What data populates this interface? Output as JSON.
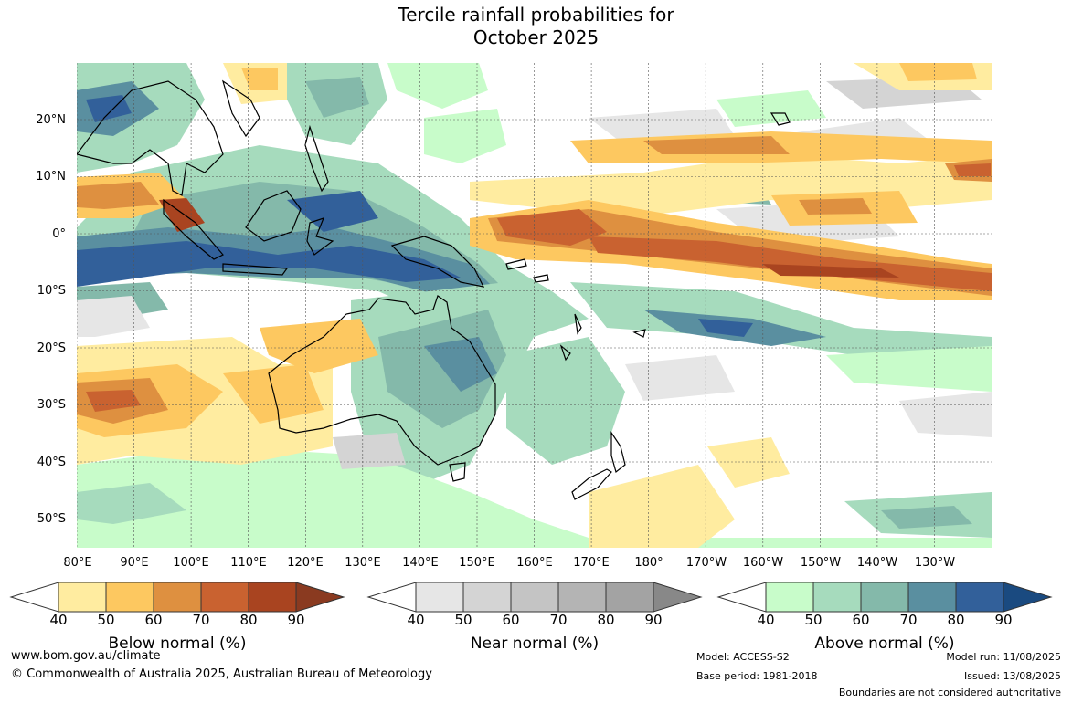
{
  "title_line1": "Tercile rainfall probabilities for",
  "title_line2": "October 2025",
  "lat_labels": [
    "20°N",
    "10°N",
    "0°",
    "10°S",
    "20°S",
    "30°S",
    "40°S",
    "50°S"
  ],
  "lon_labels": [
    "80°E",
    "90°E",
    "100°E",
    "110°E",
    "120°E",
    "130°E",
    "140°E",
    "150°E",
    "160°E",
    "170°E",
    "180°",
    "170°W",
    "160°W",
    "150°W",
    "140°W",
    "130°W"
  ],
  "colorbars": [
    {
      "title": "Below normal (%)",
      "ticks": [
        "40",
        "50",
        "60",
        "70",
        "80",
        "90"
      ],
      "colors": [
        "#ffeca0",
        "#fdc860",
        "#de9040",
        "#c96230",
        "#a94420",
        "#8a3a20"
      ]
    },
    {
      "title": "Near normal (%)",
      "ticks": [
        "40",
        "50",
        "60",
        "70",
        "80",
        "90"
      ],
      "colors": [
        "#e6e6e6",
        "#d4d4d4",
        "#c4c4c4",
        "#b4b4b4",
        "#a3a3a3",
        "#888888"
      ]
    },
    {
      "title": "Above normal (%)",
      "ticks": [
        "40",
        "50",
        "60",
        "70",
        "80",
        "90"
      ],
      "colors": [
        "#c8fcca",
        "#a6dbbd",
        "#84b9aa",
        "#5a8fa0",
        "#32609a",
        "#1a4a80"
      ]
    }
  ],
  "footer": {
    "url": "www.bom.gov.au/climate",
    "copyright": "© Commonwealth of Australia 2025, Australian Bureau of Meteorology",
    "model": "Model: ACCESS-S2",
    "base_period": "Base period: 1981-2018",
    "model_run": "Model run: 11/08/2025",
    "issued": "Issued: 13/08/2025",
    "boundaries": "Boundaries are not considered authoritative"
  }
}
